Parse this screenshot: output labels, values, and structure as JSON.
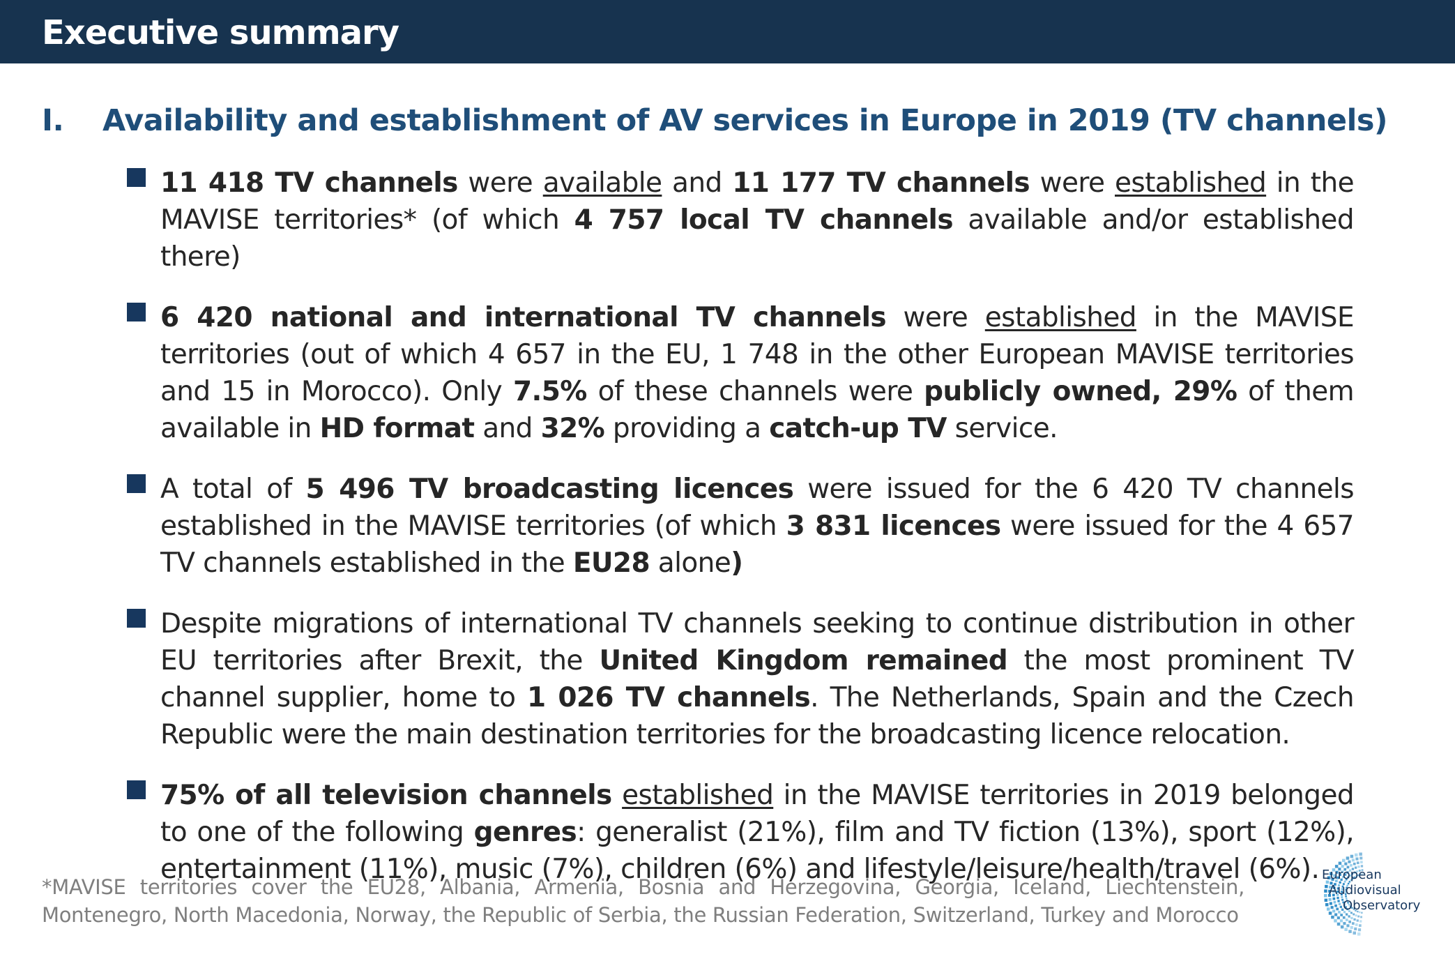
{
  "header": {
    "title": "Executive summary"
  },
  "section": {
    "number": "I.",
    "title": "Availability and establishment of AV services in Europe in 2019 (TV channels)"
  },
  "bullets": [
    {
      "segments": [
        {
          "text": "11 418 TV channels",
          "style": "bold"
        },
        {
          "text": " were "
        },
        {
          "text": "available",
          "style": "underline"
        },
        {
          "text": " and "
        },
        {
          "text": "11 177 TV channels",
          "style": "bold"
        },
        {
          "text": " were "
        },
        {
          "text": "established",
          "style": "underline"
        },
        {
          "text": " in the MAVISE territories* (of which "
        },
        {
          "text": "4 757 local TV channels",
          "style": "bold"
        },
        {
          "text": " available and/or established there)"
        }
      ]
    },
    {
      "segments": [
        {
          "text": "6 420 national and international TV channels",
          "style": "bold"
        },
        {
          "text": " were "
        },
        {
          "text": "established",
          "style": "underline"
        },
        {
          "text": " in the MAVISE territories (out of which 4 657 in the EU, 1 748 in the other European MAVISE territories and 15 in Morocco). Only "
        },
        {
          "text": "7.5%",
          "style": "bold"
        },
        {
          "text": " of these channels were "
        },
        {
          "text": "publicly owned, 29%",
          "style": "bold"
        },
        {
          "text": " of them available in "
        },
        {
          "text": "HD format",
          "style": "bold"
        },
        {
          "text": " and "
        },
        {
          "text": "32%",
          "style": "bold"
        },
        {
          "text": " providing a "
        },
        {
          "text": "catch-up TV",
          "style": "bold"
        },
        {
          "text": " service."
        }
      ]
    },
    {
      "segments": [
        {
          "text": "A total of "
        },
        {
          "text": "5 496 TV broadcasting licences",
          "style": "bold"
        },
        {
          "text": " were issued for the 6 420 TV channels established in the MAVISE territories (of which "
        },
        {
          "text": "3 831 licences",
          "style": "bold"
        },
        {
          "text": " were issued for the 4 657 TV channels established in the "
        },
        {
          "text": "EU28",
          "style": "bold"
        },
        {
          "text": " alone"
        },
        {
          "text": ")",
          "style": "bold"
        }
      ]
    },
    {
      "segments": [
        {
          "text": "Despite migrations of international TV channels seeking to continue distribution in other EU territories after Brexit, the "
        },
        {
          "text": "United Kingdom remained",
          "style": "bold"
        },
        {
          "text": " the most prominent TV channel supplier, home to "
        },
        {
          "text": "1 026 TV channels",
          "style": "bold"
        },
        {
          "text": ". The Netherlands, Spain and the Czech Republic were the main destination territories for the broadcasting licence relocation."
        }
      ]
    },
    {
      "segments": [
        {
          "text": "75% of all television channels",
          "style": "bold"
        },
        {
          "text": " "
        },
        {
          "text": "established",
          "style": "underline"
        },
        {
          "text": " in the MAVISE territories in 2019 belonged to one of the following "
        },
        {
          "text": "genres",
          "style": "bold"
        },
        {
          "text": ": generalist (21%), film and TV fiction (13%), sport (12%), entertainment (11%), music (7%), children (6%) and lifestyle/leisure/health/travel (6%)."
        }
      ]
    }
  ],
  "footnote": "*MAVISE territories cover the EU28, Albania, Armenia, Bosnia and Herzegovina, Georgia, Iceland, Liechtenstein, Montenegro, North Macedonia, Norway, the Republic of Serbia, the Russian Federation, Switzerland, Turkey and Morocco",
  "logo": {
    "line1": "European",
    "line2": "Audiovisual",
    "line3": "Observatory"
  },
  "colors": {
    "header_bg": "#17334f",
    "section_title": "#1f4e79",
    "bullet_square": "#17375e",
    "footnote": "#7f7f7f"
  },
  "icons": {
    "bullet": "square-bullet-icon",
    "logo": "observatory-logo-icon"
  }
}
